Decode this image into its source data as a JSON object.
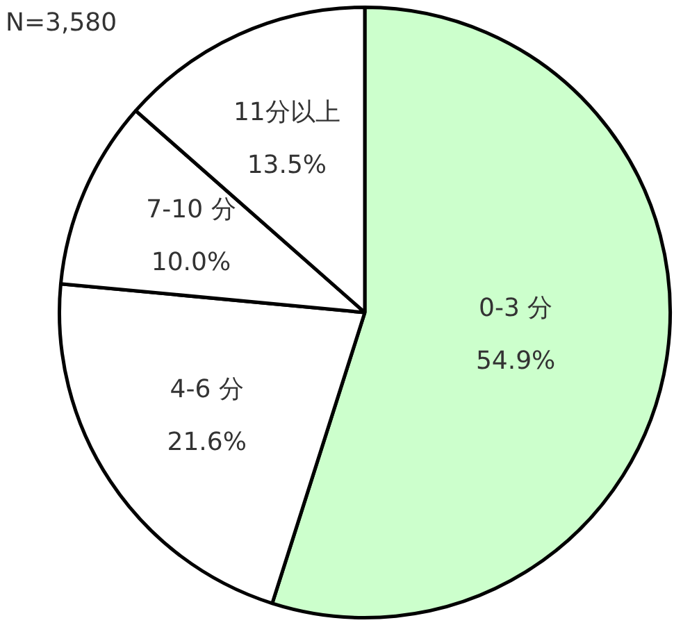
{
  "chart_data": {
    "type": "pie",
    "categories": [
      "0-3 分",
      "4-6 分",
      "7-10 分",
      "11分以上"
    ],
    "values": [
      54.9,
      21.6,
      10.0,
      13.5
    ],
    "colors": [
      "#ccffcc",
      "#ffffff",
      "#ffffff",
      "#ffffff"
    ],
    "value_labels": [
      "54.9%",
      "21.6%",
      "10.0%",
      "13.5%"
    ],
    "legend": false,
    "annotations": [
      "N=3,580"
    ]
  }
}
